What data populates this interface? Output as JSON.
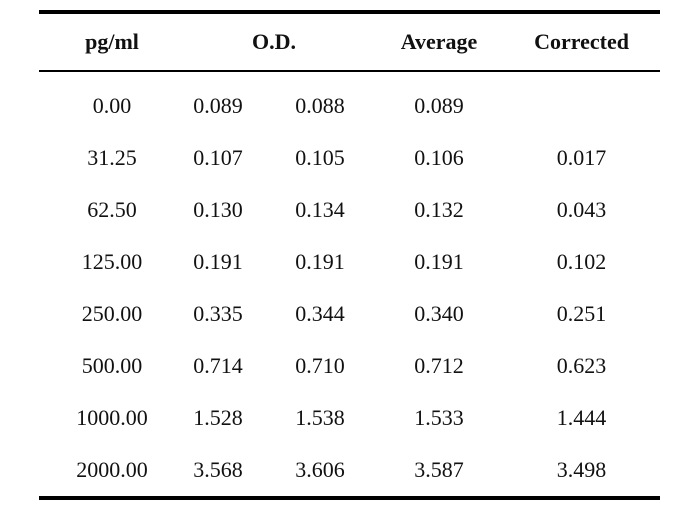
{
  "table": {
    "headers": {
      "pg": "pg/ml",
      "od": "O.D.",
      "average": "Average",
      "corrected": "Corrected"
    },
    "rows": [
      {
        "pg": "0.00",
        "od1": "0.089",
        "od2": "0.088",
        "average": "0.089",
        "corrected": ""
      },
      {
        "pg": "31.25",
        "od1": "0.107",
        "od2": "0.105",
        "average": "0.106",
        "corrected": "0.017"
      },
      {
        "pg": "62.50",
        "od1": "0.130",
        "od2": "0.134",
        "average": "0.132",
        "corrected": "0.043"
      },
      {
        "pg": "125.00",
        "od1": "0.191",
        "od2": "0.191",
        "average": "0.191",
        "corrected": "0.102"
      },
      {
        "pg": "250.00",
        "od1": "0.335",
        "od2": "0.344",
        "average": "0.340",
        "corrected": "0.251"
      },
      {
        "pg": "500.00",
        "od1": "0.714",
        "od2": "0.710",
        "average": "0.712",
        "corrected": "0.623"
      },
      {
        "pg": "1000.00",
        "od1": "1.528",
        "od2": "1.538",
        "average": "1.533",
        "corrected": "1.444"
      },
      {
        "pg": "2000.00",
        "od1": "3.568",
        "od2": "3.606",
        "average": "3.587",
        "corrected": "3.498"
      }
    ]
  }
}
